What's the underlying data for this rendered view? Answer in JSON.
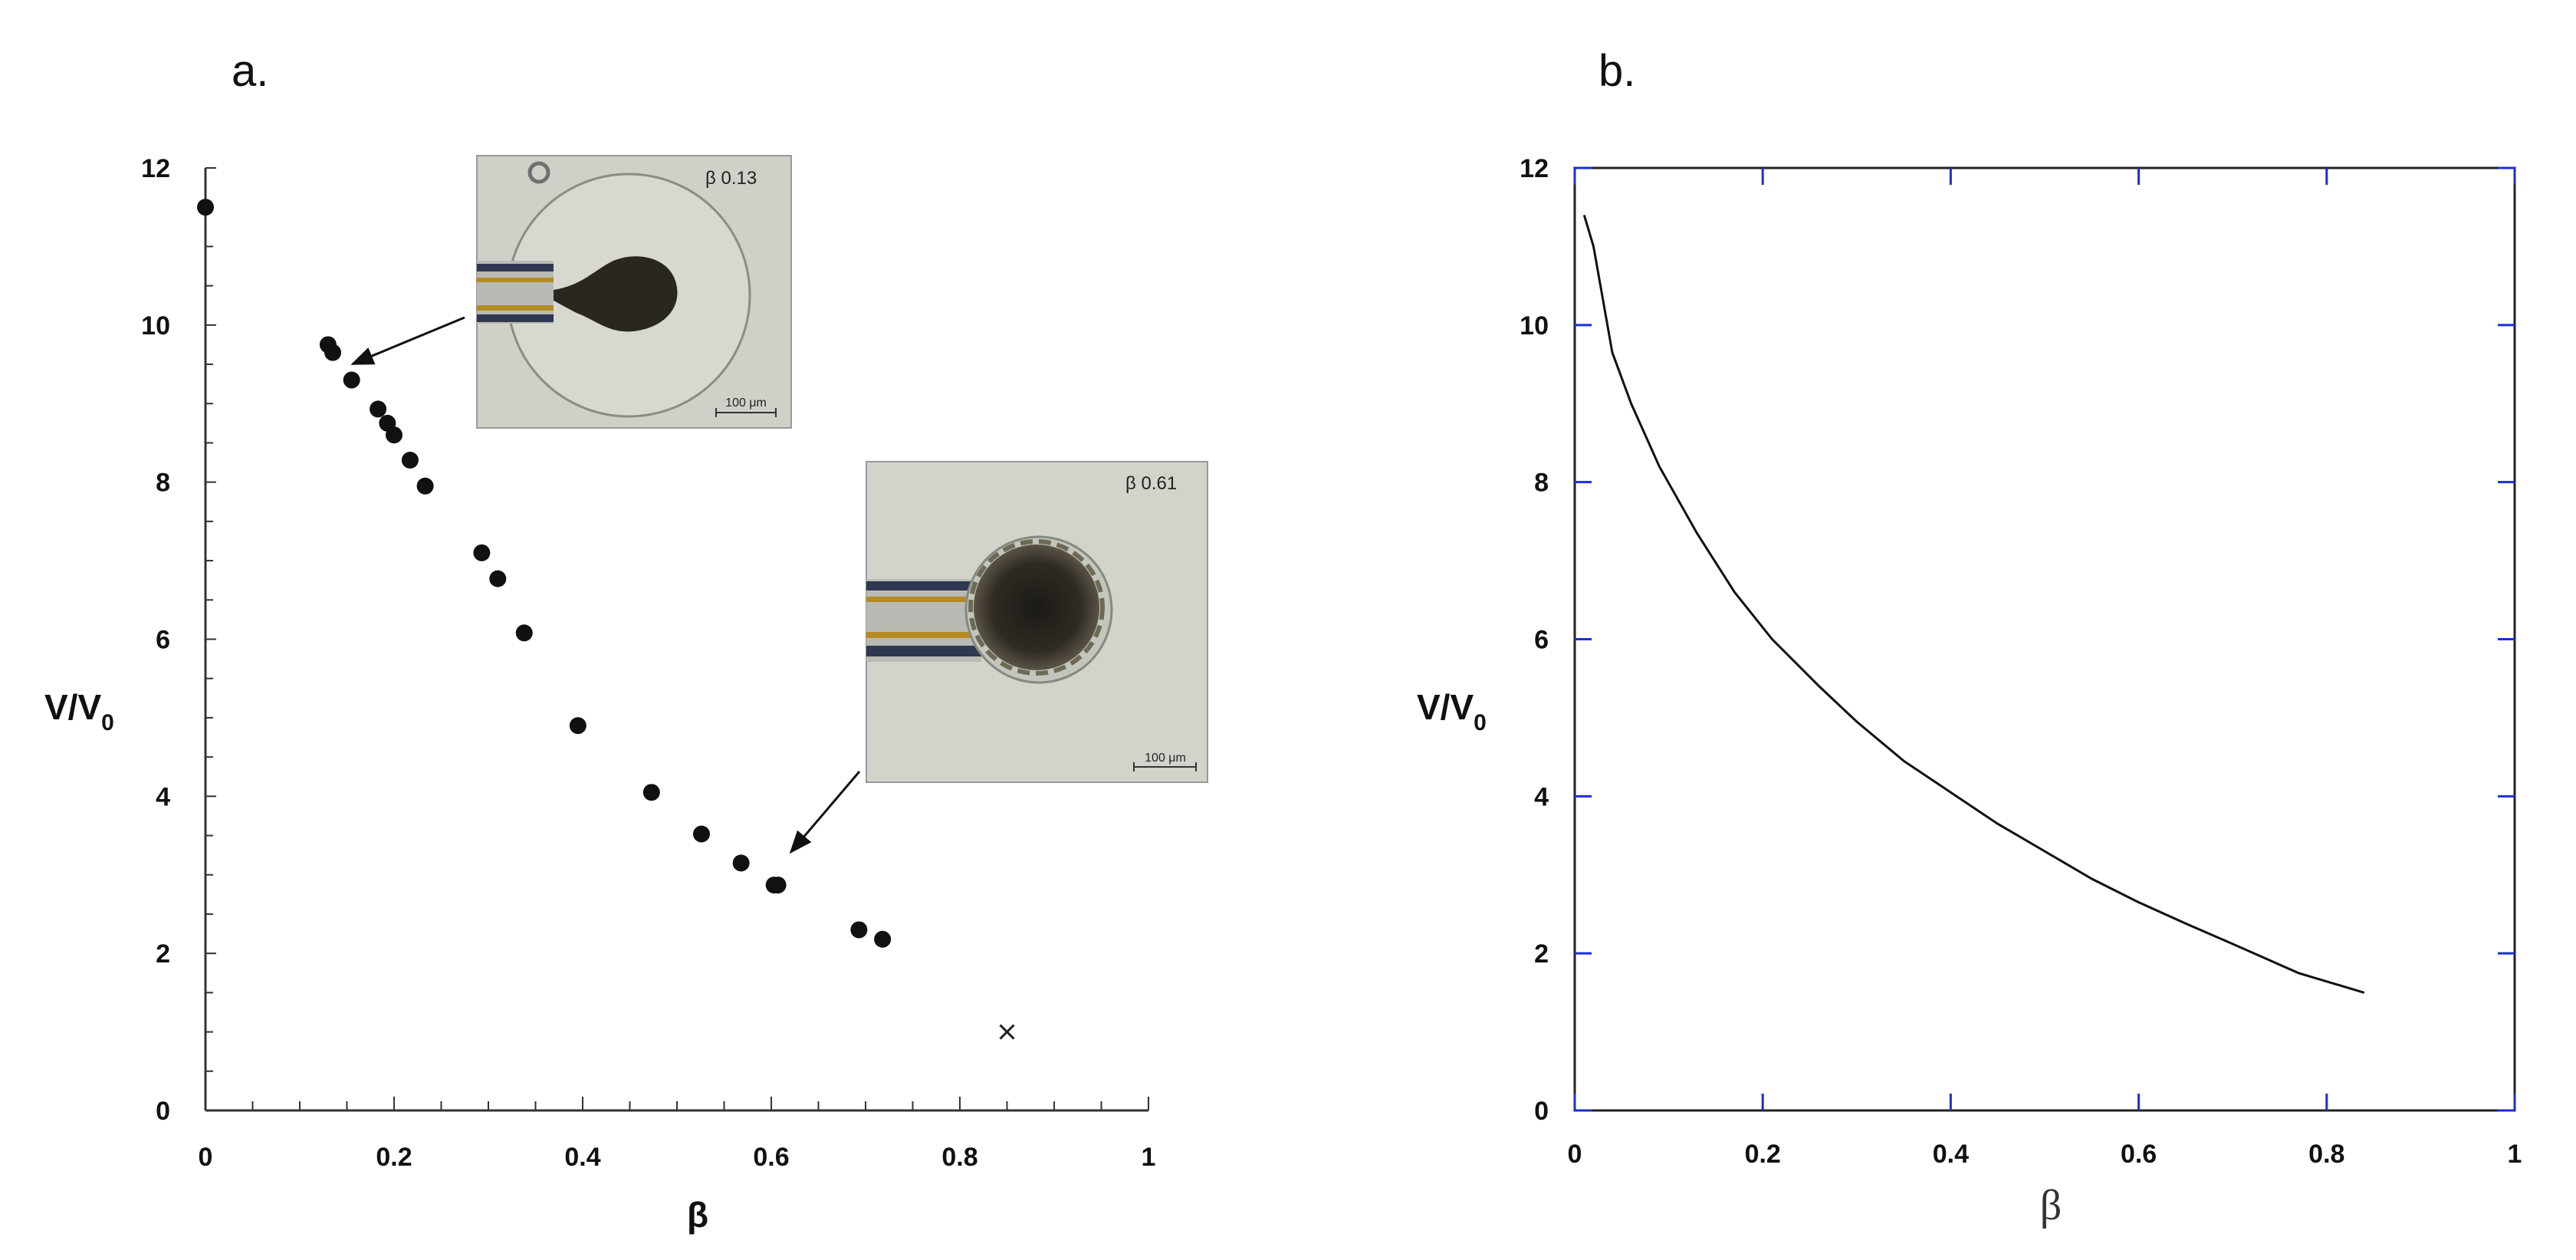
{
  "chart_data": [
    {
      "panel": "a.",
      "type": "scatter",
      "xlabel": "β",
      "ylabel": "V/V",
      "ylabel_subscript": "0",
      "xlim": [
        0,
        1
      ],
      "ylim": [
        0,
        12
      ],
      "xticks": [
        "0",
        "0.2",
        "0.4",
        "0.6",
        "0.8",
        "1"
      ],
      "yticks": [
        "0",
        "2",
        "4",
        "6",
        "8",
        "10",
        "12"
      ],
      "points": [
        {
          "x": 0.0,
          "y": 11.5
        },
        {
          "x": 0.13,
          "y": 9.75
        },
        {
          "x": 0.135,
          "y": 9.65
        },
        {
          "x": 0.155,
          "y": 9.3
        },
        {
          "x": 0.183,
          "y": 8.93
        },
        {
          "x": 0.193,
          "y": 8.75
        },
        {
          "x": 0.2,
          "y": 8.6
        },
        {
          "x": 0.217,
          "y": 8.28
        },
        {
          "x": 0.233,
          "y": 7.95
        },
        {
          "x": 0.293,
          "y": 7.1
        },
        {
          "x": 0.31,
          "y": 6.77
        },
        {
          "x": 0.338,
          "y": 6.08
        },
        {
          "x": 0.395,
          "y": 4.9
        },
        {
          "x": 0.473,
          "y": 4.05
        },
        {
          "x": 0.526,
          "y": 3.52
        },
        {
          "x": 0.568,
          "y": 3.15
        },
        {
          "x": 0.603,
          "y": 2.87
        },
        {
          "x": 0.607,
          "y": 2.87
        },
        {
          "x": 0.693,
          "y": 2.3
        },
        {
          "x": 0.718,
          "y": 2.18
        }
      ],
      "outlier": {
        "x": 0.85,
        "y": 1.0,
        "marker": "x"
      },
      "insets": [
        {
          "label": "β 0.13",
          "scale_bar": "100 μm",
          "points_to": {
            "x": 0.135,
            "y": 9.7
          }
        },
        {
          "label": "β 0.61",
          "scale_bar": "100 μm",
          "points_to": {
            "x": 0.603,
            "y": 2.92
          }
        }
      ]
    },
    {
      "panel": "b.",
      "type": "line",
      "xlabel": "β",
      "ylabel": "V/V",
      "ylabel_subscript": "0",
      "xlim": [
        0,
        1
      ],
      "ylim": [
        0,
        12
      ],
      "xticks": [
        "0",
        "0.2",
        "0.4",
        "0.6",
        "0.8",
        "1"
      ],
      "yticks": [
        "0",
        "2",
        "4",
        "6",
        "8",
        "10",
        "12"
      ],
      "tick_color": "#1a2fd8",
      "line": [
        {
          "x": 0.01,
          "y": 11.4
        },
        {
          "x": 0.02,
          "y": 11.0
        },
        {
          "x": 0.04,
          "y": 9.65
        },
        {
          "x": 0.06,
          "y": 9.0
        },
        {
          "x": 0.09,
          "y": 8.2
        },
        {
          "x": 0.13,
          "y": 7.35
        },
        {
          "x": 0.17,
          "y": 6.6
        },
        {
          "x": 0.21,
          "y": 6.0
        },
        {
          "x": 0.26,
          "y": 5.4
        },
        {
          "x": 0.3,
          "y": 4.95
        },
        {
          "x": 0.35,
          "y": 4.45
        },
        {
          "x": 0.4,
          "y": 4.05
        },
        {
          "x": 0.45,
          "y": 3.65
        },
        {
          "x": 0.5,
          "y": 3.3
        },
        {
          "x": 0.55,
          "y": 2.95
        },
        {
          "x": 0.6,
          "y": 2.65
        },
        {
          "x": 0.65,
          "y": 2.38
        },
        {
          "x": 0.7,
          "y": 2.12
        },
        {
          "x": 0.77,
          "y": 1.75
        },
        {
          "x": 0.84,
          "y": 1.5
        }
      ]
    }
  ]
}
